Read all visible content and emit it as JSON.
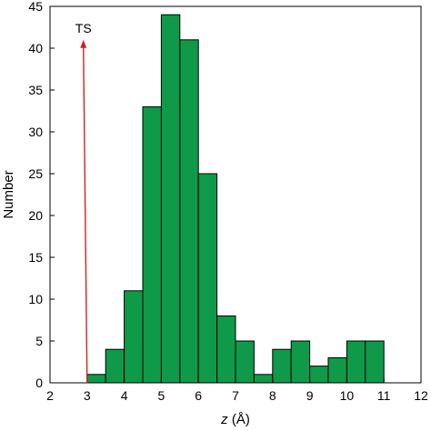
{
  "chart_data": {
    "type": "bar",
    "title": "",
    "xlabel_italic": "z",
    "xlabel_rest": " (Å)",
    "ylabel": "Number",
    "xlim": [
      2,
      12
    ],
    "ylim": [
      0,
      45
    ],
    "bin_width": 0.5,
    "xticks": [
      2,
      3,
      4,
      5,
      6,
      7,
      8,
      9,
      10,
      11,
      12
    ],
    "yticks": [
      0,
      5,
      10,
      15,
      20,
      25,
      30,
      35,
      40,
      45
    ],
    "bins": [
      {
        "x": 3.0,
        "value": 1
      },
      {
        "x": 3.5,
        "value": 4
      },
      {
        "x": 4.0,
        "value": 11
      },
      {
        "x": 4.5,
        "value": 33
      },
      {
        "x": 5.0,
        "value": 44
      },
      {
        "x": 5.5,
        "value": 41
      },
      {
        "x": 6.0,
        "value": 25
      },
      {
        "x": 6.5,
        "value": 8
      },
      {
        "x": 7.0,
        "value": 5
      },
      {
        "x": 7.5,
        "value": 1
      },
      {
        "x": 8.0,
        "value": 4
      },
      {
        "x": 8.5,
        "value": 5
      },
      {
        "x": 9.0,
        "value": 2
      },
      {
        "x": 9.5,
        "value": 3
      },
      {
        "x": 10.0,
        "value": 5
      },
      {
        "x": 10.5,
        "value": 5
      }
    ],
    "bar_color": "#0f9a49",
    "annotation": {
      "text": "TS",
      "arrow_from": [
        3.0,
        0
      ],
      "arrow_to": [
        2.9,
        41
      ],
      "color": "#d42020"
    },
    "grid": false,
    "legend": "none"
  }
}
